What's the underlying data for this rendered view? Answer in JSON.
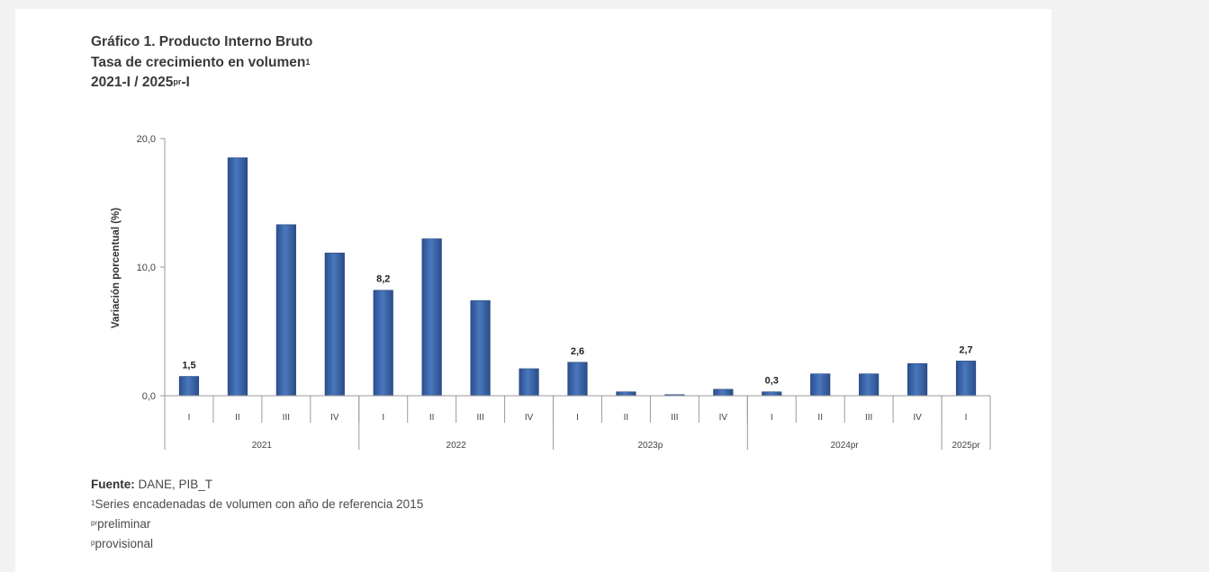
{
  "chart_data": {
    "type": "bar",
    "title": {
      "line1": "Gráfico 1. Producto Interno Bruto",
      "line2": "Tasa de crecimiento en volumen",
      "line2_sup": "1",
      "line3_pre": "2021-I / 2025",
      "line3_sup": "pr",
      "line3_post": "-I"
    },
    "ylabel": "Variación porcentual (%)",
    "ylim": [
      0,
      20
    ],
    "yticks": [
      "0,0",
      "10,0",
      "20,0"
    ],
    "yticks_values": [
      0,
      10,
      20
    ],
    "color": "#3a63a6",
    "categories": [
      "I",
      "II",
      "III",
      "IV",
      "I",
      "II",
      "III",
      "IV",
      "I",
      "II",
      "III",
      "IV",
      "I",
      "II",
      "III",
      "IV",
      "I"
    ],
    "values": [
      1.5,
      18.5,
      13.3,
      11.1,
      8.2,
      12.2,
      7.4,
      2.1,
      2.6,
      0.3,
      0.0,
      0.5,
      0.3,
      1.7,
      1.7,
      2.5,
      2.7
    ],
    "data_labels": [
      "1,5",
      "",
      "",
      "",
      "8,2",
      "",
      "",
      "",
      "2,6",
      "",
      "",
      "",
      "0,3",
      "",
      "",
      "",
      "2,7"
    ],
    "groups": [
      {
        "label": "2021",
        "count": 4
      },
      {
        "label": "2022",
        "count": 4
      },
      {
        "label": "2023p",
        "count": 4
      },
      {
        "label": "2024pr",
        "count": 4
      },
      {
        "label": "2025pr",
        "count": 1
      }
    ]
  },
  "footer": {
    "source_label": "Fuente:",
    "source_text": " DANE, PIB_T",
    "note1_sup": "1",
    "note1": "Series encadenadas de volumen con año de referencia 2015",
    "note2_sup": "pr",
    "note2": "preliminar",
    "note3_sup": "p",
    "note3": "provisional"
  }
}
